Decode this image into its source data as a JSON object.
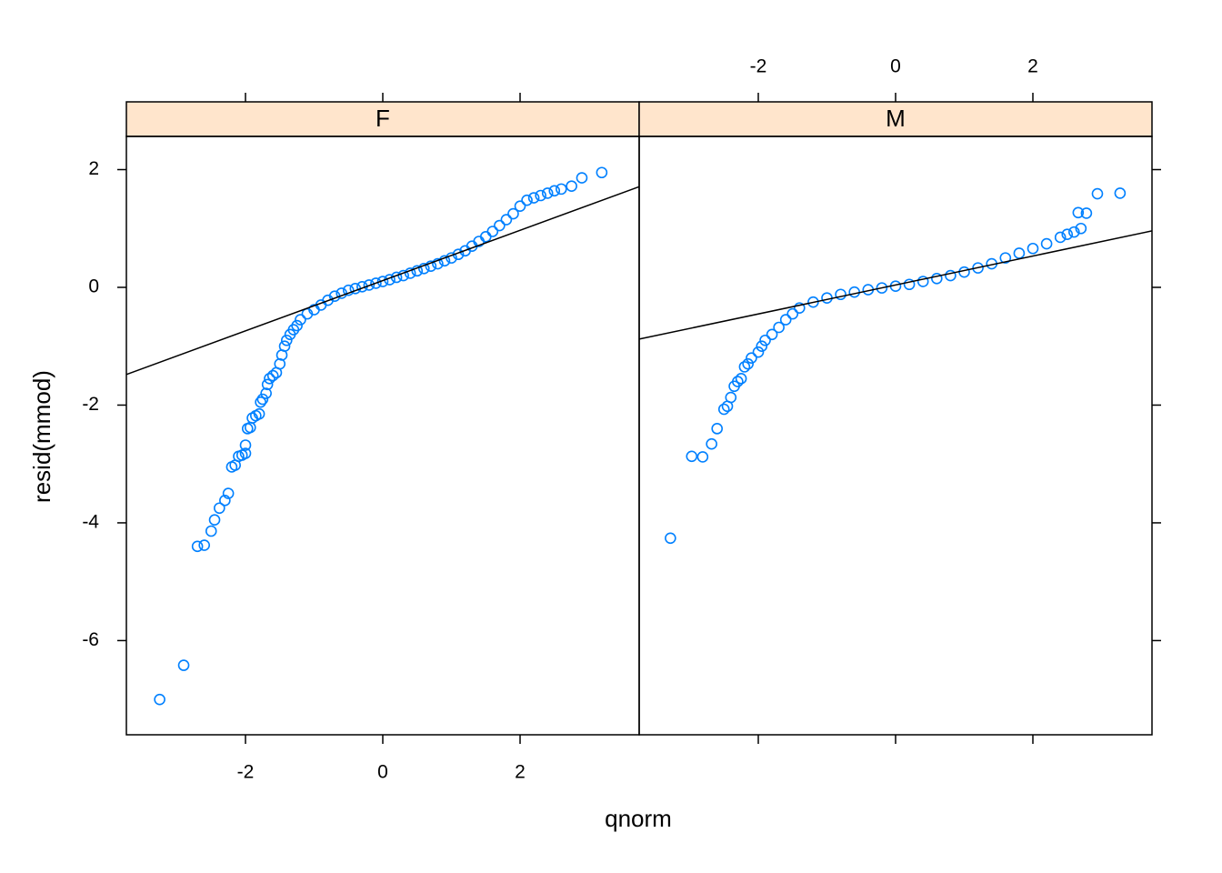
{
  "chart_data": {
    "type": "scatter",
    "xlabel": "qnorm",
    "ylabel": "resid(mmod)",
    "xlim": [
      -3.735,
      3.735
    ],
    "ylim": [
      -7.6,
      2.564
    ],
    "xticks": [
      -2,
      0,
      2
    ],
    "yticks": [
      -6,
      -4,
      -2,
      0,
      2
    ],
    "color": "#0080ff",
    "strip_color": "#ffe5cc",
    "panels": [
      {
        "name": "F",
        "line": {
          "intercept": 0.115,
          "slope": 0.427
        },
        "x": [
          -3.25,
          -2.9,
          -2.7,
          -2.6,
          -2.5,
          -2.45,
          -2.38,
          -2.3,
          -2.25,
          -2.2,
          -2.15,
          -2.1,
          -2.05,
          -2.0,
          -2.0,
          -1.97,
          -1.93,
          -1.9,
          -1.85,
          -1.8,
          -1.78,
          -1.75,
          -1.7,
          -1.68,
          -1.65,
          -1.6,
          -1.55,
          -1.5,
          -1.47,
          -1.43,
          -1.4,
          -1.35,
          -1.3,
          -1.25,
          -1.2,
          -1.1,
          -1.0,
          -0.9,
          -0.8,
          -0.7,
          -0.6,
          -0.5,
          -0.4,
          -0.3,
          -0.2,
          -0.1,
          0,
          0.1,
          0.2,
          0.3,
          0.4,
          0.5,
          0.6,
          0.7,
          0.8,
          0.9,
          1.0,
          1.1,
          1.2,
          1.3,
          1.4,
          1.5,
          1.6,
          1.7,
          1.8,
          1.9,
          2.0,
          2.1,
          2.2,
          2.3,
          2.4,
          2.5,
          2.6,
          2.75,
          2.9,
          3.19
        ],
        "y": [
          -7.0,
          -6.42,
          -4.4,
          -4.38,
          -4.14,
          -3.95,
          -3.75,
          -3.62,
          -3.5,
          -3.05,
          -3.02,
          -2.87,
          -2.85,
          -2.82,
          -2.68,
          -2.4,
          -2.38,
          -2.22,
          -2.18,
          -2.15,
          -1.95,
          -1.9,
          -1.8,
          -1.65,
          -1.55,
          -1.5,
          -1.45,
          -1.3,
          -1.15,
          -1.0,
          -0.9,
          -0.8,
          -0.72,
          -0.65,
          -0.55,
          -0.45,
          -0.38,
          -0.3,
          -0.22,
          -0.15,
          -0.1,
          -0.05,
          -0.02,
          0.01,
          0.04,
          0.07,
          0.1,
          0.13,
          0.17,
          0.2,
          0.24,
          0.28,
          0.32,
          0.36,
          0.4,
          0.45,
          0.5,
          0.56,
          0.62,
          0.7,
          0.78,
          0.86,
          0.95,
          1.05,
          1.15,
          1.25,
          1.38,
          1.48,
          1.52,
          1.56,
          1.6,
          1.64,
          1.67,
          1.72,
          1.86,
          1.95
        ]
      },
      {
        "name": "M",
        "line": {
          "intercept": 0.04,
          "slope": 0.246
        },
        "x": [
          -3.28,
          -2.97,
          -2.81,
          -2.68,
          -2.6,
          -2.5,
          -2.45,
          -2.4,
          -2.35,
          -2.3,
          -2.25,
          -2.2,
          -2.15,
          -2.1,
          -2.0,
          -1.95,
          -1.9,
          -1.8,
          -1.7,
          -1.6,
          -1.5,
          -1.4,
          -1.2,
          -1.0,
          -0.8,
          -0.6,
          -0.4,
          -0.2,
          0,
          0.2,
          0.4,
          0.6,
          0.8,
          1.0,
          1.2,
          1.4,
          1.6,
          1.8,
          2.0,
          2.2,
          2.4,
          2.5,
          2.6,
          2.7,
          2.66,
          2.78,
          2.94,
          3.27
        ],
        "y": [
          -4.26,
          -2.87,
          -2.88,
          -2.66,
          -2.4,
          -2.07,
          -2.02,
          -1.87,
          -1.68,
          -1.6,
          -1.55,
          -1.35,
          -1.3,
          -1.2,
          -1.1,
          -1.0,
          -0.9,
          -0.8,
          -0.68,
          -0.55,
          -0.45,
          -0.35,
          -0.25,
          -0.18,
          -0.12,
          -0.08,
          -0.04,
          -0.01,
          0.02,
          0.05,
          0.1,
          0.15,
          0.2,
          0.26,
          0.33,
          0.4,
          0.5,
          0.58,
          0.66,
          0.74,
          0.85,
          0.9,
          0.94,
          1.0,
          1.27,
          1.26,
          1.59,
          1.6
        ]
      }
    ]
  }
}
